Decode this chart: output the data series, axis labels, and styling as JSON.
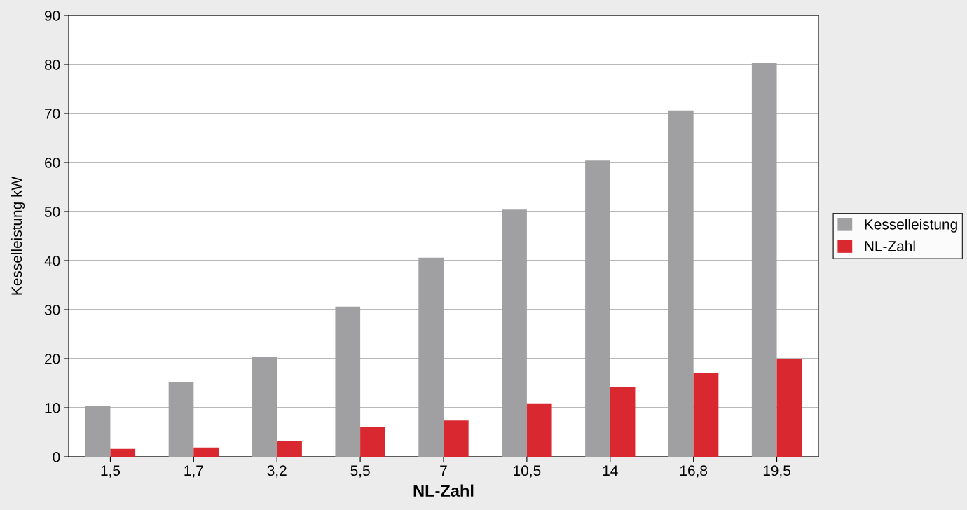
{
  "chart_data": {
    "type": "bar",
    "xlabel": "NL-Zahl",
    "ylabel": "Kesselleistung kW",
    "categories": [
      "1,5",
      "1,7",
      "3,2",
      "5,5",
      "7",
      "10,5",
      "14",
      "16,8",
      "19,5"
    ],
    "series": [
      {
        "name": "Kesselleistung",
        "color": "#a0a0a2",
        "values": [
          10.3,
          15.3,
          20.4,
          30.6,
          40.6,
          50.4,
          60.4,
          70.6,
          80.3
        ]
      },
      {
        "name": "NL-Zahl",
        "color": "#d9282f",
        "values": [
          1.6,
          1.9,
          3.3,
          6.0,
          7.4,
          10.9,
          14.3,
          17.1,
          19.9
        ]
      }
    ],
    "ylim": [
      0,
      90
    ],
    "yticks": [
      0,
      10,
      20,
      30,
      40,
      50,
      60,
      70,
      80,
      90
    ],
    "grid": "y",
    "legend": "right"
  }
}
